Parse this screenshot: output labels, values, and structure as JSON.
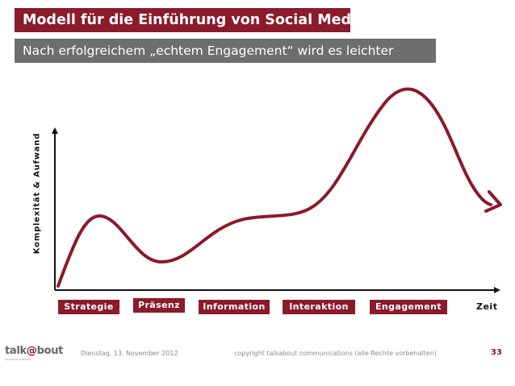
{
  "header": {
    "title": "Modell für die Einführung von Social Media",
    "subtitle": "Nach erfolgreichem „echtem Engagement“ wird es leichter"
  },
  "diagram": {
    "y_axis_label": "Komplexität & Aufwand",
    "x_axis_label": "Zeit",
    "phases": [
      "Strategie",
      "Präsenz",
      "Information",
      "Interaktion",
      "Engagement"
    ],
    "colors": {
      "accent": "#8b1a2b",
      "subtitle_bg": "#6e6e6e",
      "axis": "#111111"
    }
  },
  "footer": {
    "logo_text": "talk@bout",
    "logo_subtext": "communications",
    "date": "Dienstag, 13. November 2012",
    "copyright": "copyright talkabout communications (alle Rechte vorbehalten)",
    "page_number": "33"
  }
}
